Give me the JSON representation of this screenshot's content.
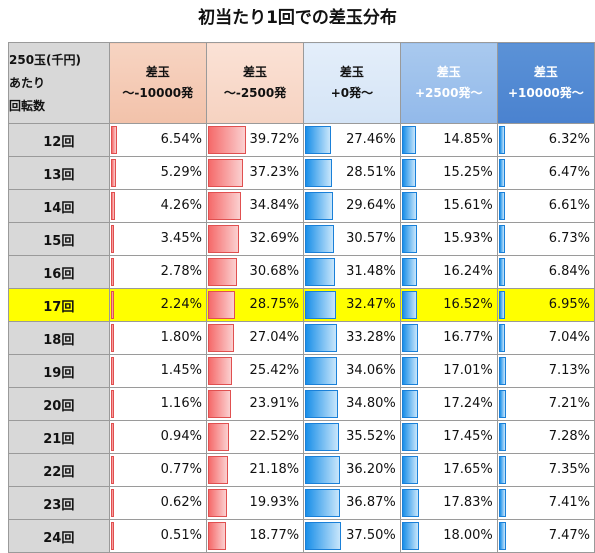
{
  "title": "初当たり1回での差玉分布",
  "corner_label": "250玉(千円)\nあたり\n回転数",
  "chart_data": {
    "type": "table",
    "title": "初当たり1回での差玉分布",
    "columns": [
      {
        "label": "差玉\n～-10000発",
        "style": "red"
      },
      {
        "label": "差玉\n～-2500発",
        "style": "red"
      },
      {
        "label": "差玉\n+0発～",
        "style": "blue"
      },
      {
        "label": "差玉\n+2500発～",
        "style": "blue"
      },
      {
        "label": "差玉\n+10000発～",
        "style": "blue"
      }
    ],
    "rows": [
      {
        "label": "12回",
        "values": [
          "6.54%",
          "39.72%",
          "27.46%",
          "14.85%",
          "6.32%"
        ]
      },
      {
        "label": "13回",
        "values": [
          "5.29%",
          "37.23%",
          "28.51%",
          "15.25%",
          "6.47%"
        ]
      },
      {
        "label": "14回",
        "values": [
          "4.26%",
          "34.84%",
          "29.64%",
          "15.61%",
          "6.61%"
        ]
      },
      {
        "label": "15回",
        "values": [
          "3.45%",
          "32.69%",
          "30.57%",
          "15.93%",
          "6.73%"
        ]
      },
      {
        "label": "16回",
        "values": [
          "2.78%",
          "30.68%",
          "31.48%",
          "16.24%",
          "6.84%"
        ]
      },
      {
        "label": "17回",
        "values": [
          "2.24%",
          "28.75%",
          "32.47%",
          "16.52%",
          "6.95%"
        ],
        "highlight": true
      },
      {
        "label": "18回",
        "values": [
          "1.80%",
          "27.04%",
          "33.28%",
          "16.77%",
          "7.04%"
        ]
      },
      {
        "label": "19回",
        "values": [
          "1.45%",
          "25.42%",
          "34.06%",
          "17.01%",
          "7.13%"
        ]
      },
      {
        "label": "20回",
        "values": [
          "1.16%",
          "23.91%",
          "34.80%",
          "17.24%",
          "7.21%"
        ]
      },
      {
        "label": "21回",
        "values": [
          "0.94%",
          "22.52%",
          "35.52%",
          "17.45%",
          "7.28%"
        ]
      },
      {
        "label": "22回",
        "values": [
          "0.77%",
          "21.18%",
          "36.20%",
          "17.65%",
          "7.35%"
        ]
      },
      {
        "label": "23回",
        "values": [
          "0.62%",
          "19.93%",
          "36.87%",
          "17.83%",
          "7.41%"
        ]
      },
      {
        "label": "24回",
        "values": [
          "0.51%",
          "18.77%",
          "37.50%",
          "18.00%",
          "7.47%"
        ]
      }
    ],
    "highlight_color": "#ffff00",
    "bar_colors": {
      "red": "#f56a6a",
      "blue": "#1a8fe8"
    }
  }
}
